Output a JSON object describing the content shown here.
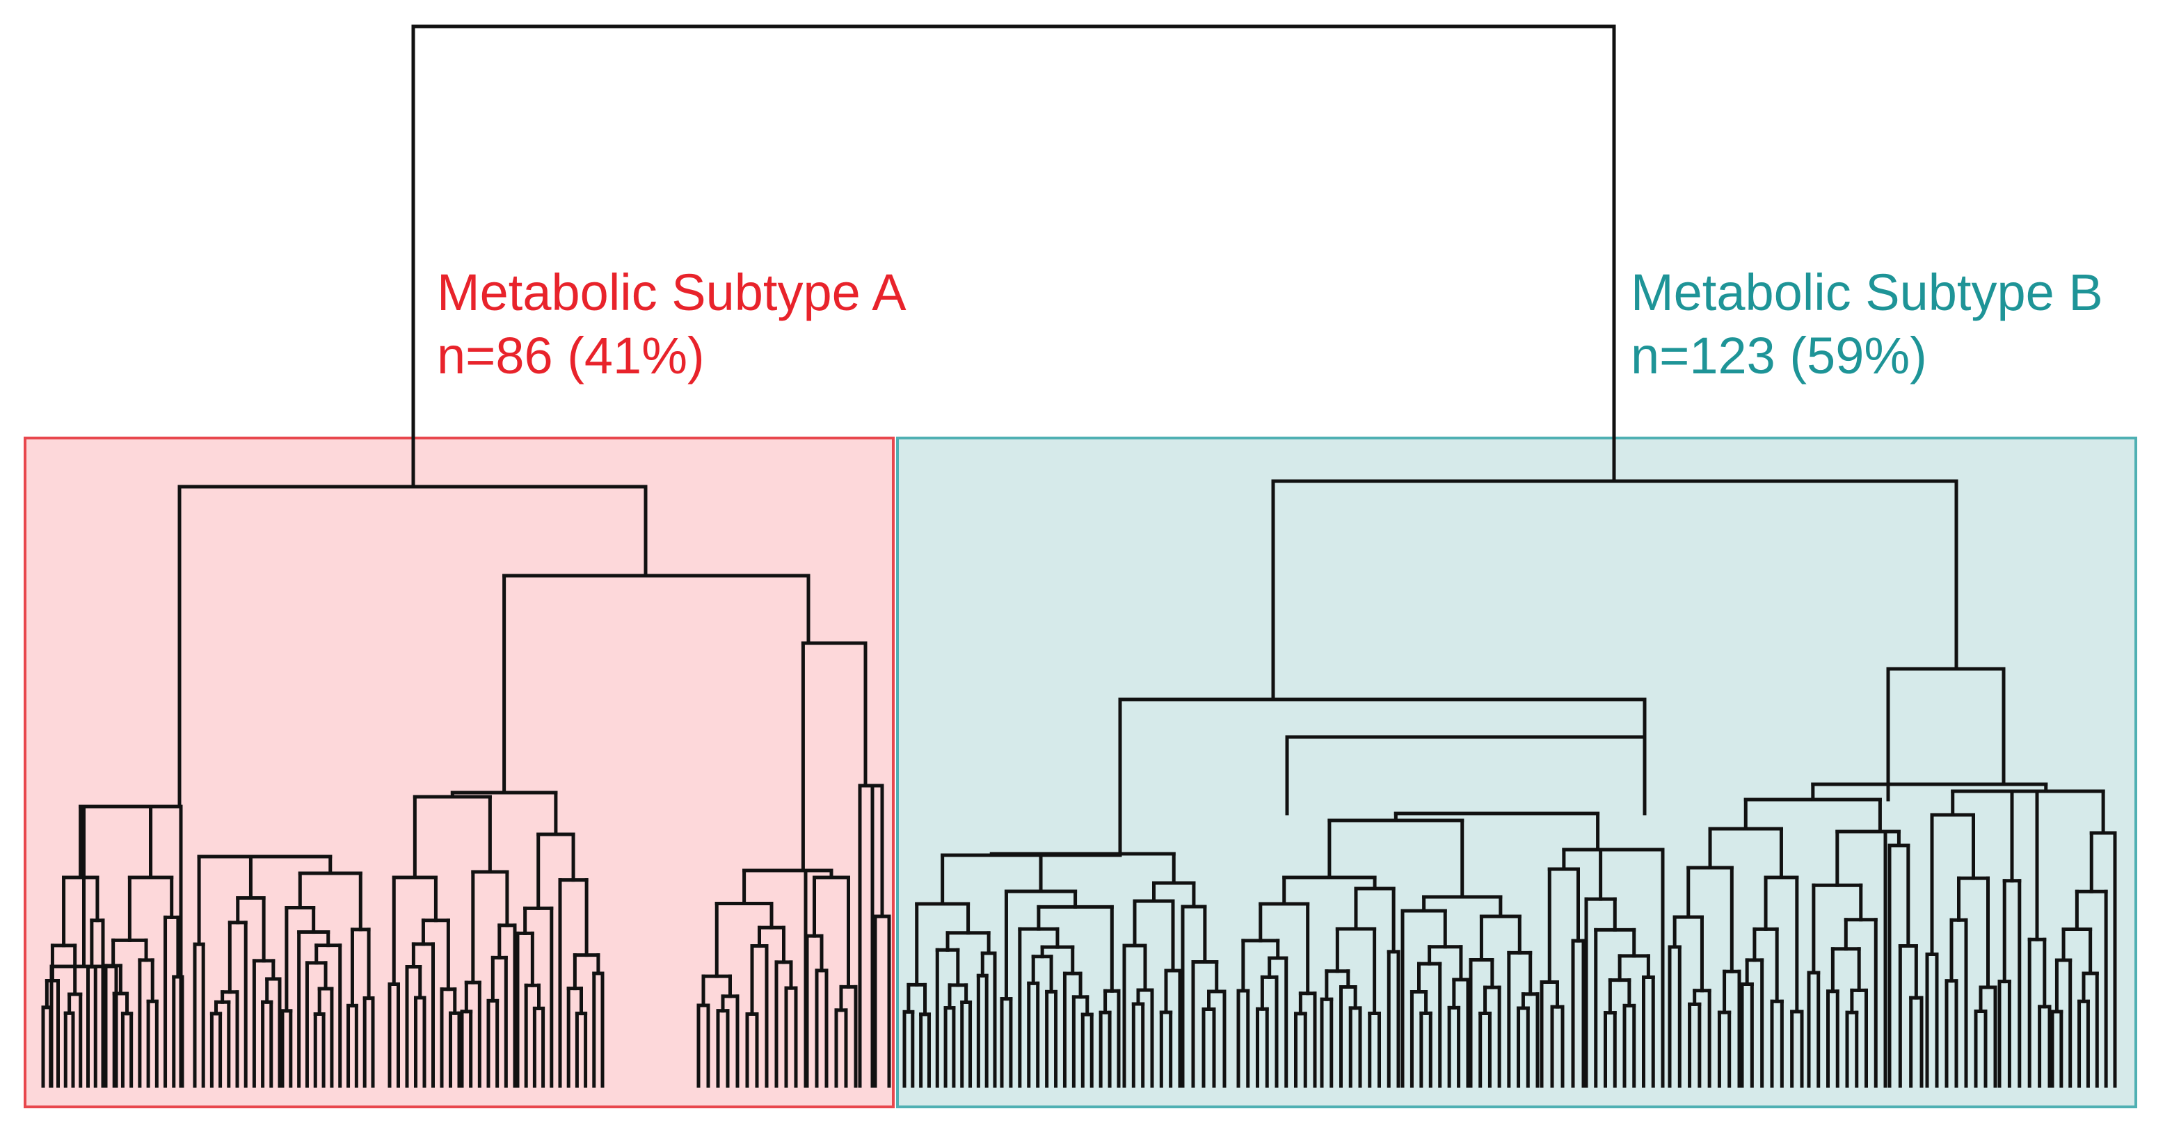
{
  "figure": {
    "type": "hierarchical-clustering-dendrogram",
    "colors": {
      "line": "#111111",
      "subtype_a_text": "#e8232b",
      "subtype_a_fill": "#fdd8da",
      "subtype_a_border": "#e8474d",
      "subtype_b_text": "#1e9497",
      "subtype_b_fill": "#d6eaea",
      "subtype_b_border": "#4fb0b3",
      "background": "#ffffff"
    }
  },
  "clusters": [
    {
      "id": "A",
      "name": "Metabolic Subtype A",
      "count_label": "n=86 (41%)",
      "n": 86,
      "percent": 41
    },
    {
      "id": "B",
      "name": "Metabolic Subtype B",
      "count_label": "n=123 (59%)",
      "n": 123,
      "percent": 59
    }
  ]
}
